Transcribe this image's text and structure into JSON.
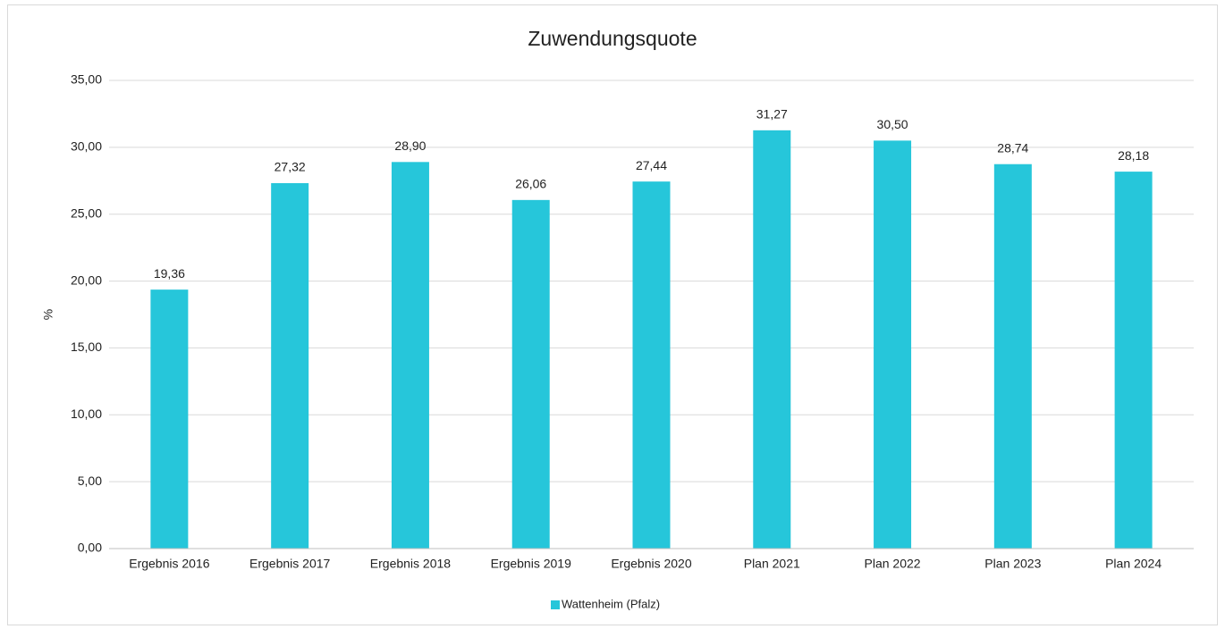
{
  "chart_data": {
    "type": "bar",
    "title": "Zuwendungsquote",
    "y_label": "%",
    "categories": [
      "Ergebnis 2016",
      "Ergebnis 2017",
      "Ergebnis 2018",
      "Ergebnis 2019",
      "Ergebnis 2020",
      "Plan 2021",
      "Plan 2022",
      "Plan 2023",
      "Plan 2024"
    ],
    "series": [
      {
        "name": "Wattenheim (Pfalz)",
        "color": "#26c6da",
        "values": [
          19.36,
          27.32,
          28.9,
          26.06,
          27.44,
          31.27,
          30.5,
          28.74,
          28.18
        ],
        "value_labels": [
          "19,36",
          "27,32",
          "28,90",
          "26,06",
          "27,44",
          "31,27",
          "30,50",
          "28,74",
          "28,18"
        ]
      }
    ],
    "ylim": [
      0,
      35
    ],
    "yticks": [
      {
        "value": 0,
        "label": "0,00"
      },
      {
        "value": 5,
        "label": "5,00"
      },
      {
        "value": 10,
        "label": "10,00"
      },
      {
        "value": 15,
        "label": "15,00"
      },
      {
        "value": 20,
        "label": "20,00"
      },
      {
        "value": 25,
        "label": "25,00"
      },
      {
        "value": 30,
        "label": "30,00"
      },
      {
        "value": 35,
        "label": "35,00"
      }
    ],
    "grid": true,
    "legend": "bottom"
  }
}
